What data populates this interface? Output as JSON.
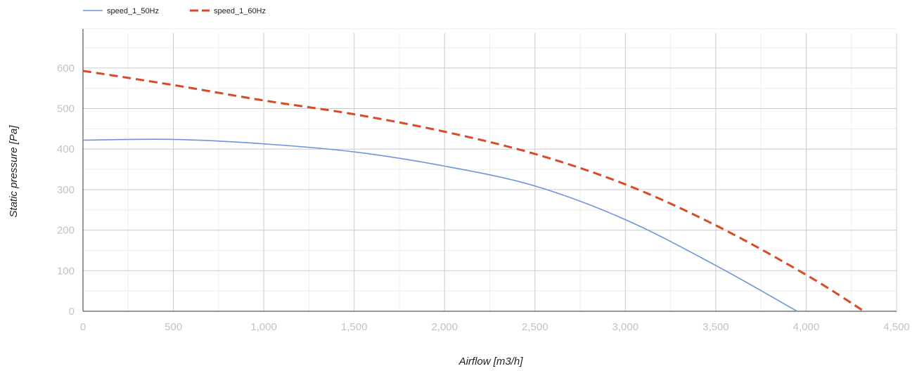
{
  "chart_data": {
    "type": "line",
    "xlabel": "Airflow [m3/h]",
    "ylabel": "Static pressure [Pa]",
    "xlim": [
      0,
      4500
    ],
    "ylim": [
      0,
      650
    ],
    "x_ticks": [
      "0",
      "500",
      "1,000",
      "1,500",
      "2,000",
      "2,500",
      "3,000",
      "3,500",
      "4,000",
      "4,500"
    ],
    "y_ticks": [
      "0",
      "100",
      "200",
      "300",
      "400",
      "500",
      "600"
    ],
    "grid": true,
    "legend_position": "top-left",
    "series": [
      {
        "name": "speed_1_50Hz",
        "color": "#6f94dc",
        "style": "solid",
        "x": [
          0,
          500,
          1000,
          1500,
          2000,
          2500,
          3000,
          3500,
          3950
        ],
        "y": [
          422,
          424,
          413,
          393,
          358,
          309,
          226,
          113,
          0
        ]
      },
      {
        "name": "speed_1_60Hz",
        "color": "#d94a26",
        "style": "dashed",
        "x": [
          0,
          500,
          1000,
          1500,
          2000,
          2500,
          3000,
          3500,
          4000,
          4320
        ],
        "y": [
          593,
          558,
          520,
          486,
          443,
          388,
          313,
          212,
          90,
          0
        ]
      }
    ]
  }
}
